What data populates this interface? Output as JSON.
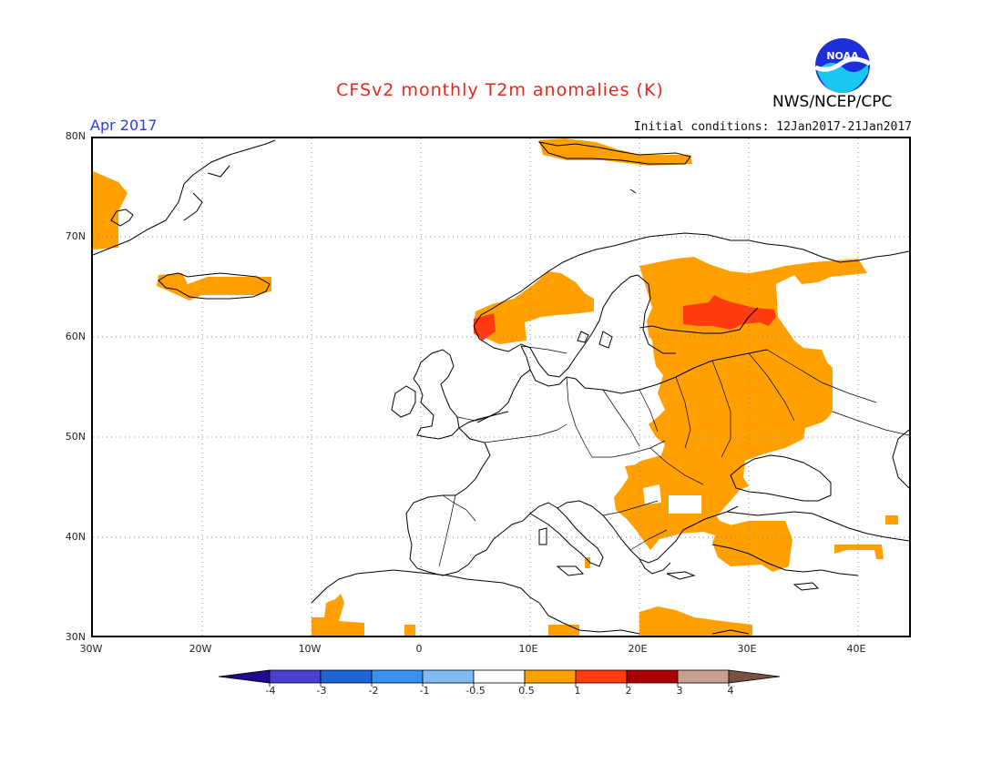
{
  "header": {
    "title": "CFSv2 monthly T2m anomalies (K)",
    "month": "Apr 2017",
    "initial_conditions": "Initial conditions: 12Jan2017-21Jan2017",
    "agency": "NWS/NCEP/CPC",
    "logo_text": "NOAA"
  },
  "map": {
    "lat_labels": [
      "80N",
      "70N",
      "60N",
      "50N",
      "40N",
      "30N"
    ],
    "lon_labels": [
      "30W",
      "20W",
      "10W",
      "0",
      "10E",
      "20E",
      "30E",
      "40E"
    ],
    "extent": {
      "lon_min": -30,
      "lon_max": 45,
      "lat_min": 30,
      "lat_max": 80
    },
    "anomaly_regions": [
      {
        "name": "greenland-east",
        "category": "0.5-1"
      },
      {
        "name": "iceland",
        "category": "0.5-1"
      },
      {
        "name": "svalbard",
        "category": "0.5-1"
      },
      {
        "name": "norway-west",
        "category": "0.5-1"
      },
      {
        "name": "norway-west-core",
        "category": "1-2"
      },
      {
        "name": "finland-russia",
        "category": "0.5-1"
      },
      {
        "name": "finland-core",
        "category": "1-2"
      },
      {
        "name": "eastern-europe",
        "category": "0.5-1"
      },
      {
        "name": "balkans",
        "category": "0.5-1"
      },
      {
        "name": "turkey",
        "category": "0.5-1"
      },
      {
        "name": "north-africa",
        "category": "0.5-1"
      }
    ]
  },
  "colorbar": {
    "labels": [
      "-4",
      "-3",
      "-2",
      "-1",
      "-0.5",
      "0.5",
      "1",
      "2",
      "3",
      "4"
    ],
    "colors": [
      "#1e0a8c",
      "#4a3fd0",
      "#1f64d6",
      "#3a8ff0",
      "#7fbcf4",
      "#ffffff",
      "#ffa000",
      "#ff3c10",
      "#a80000",
      "#c8a090",
      "#7a5040"
    ]
  }
}
